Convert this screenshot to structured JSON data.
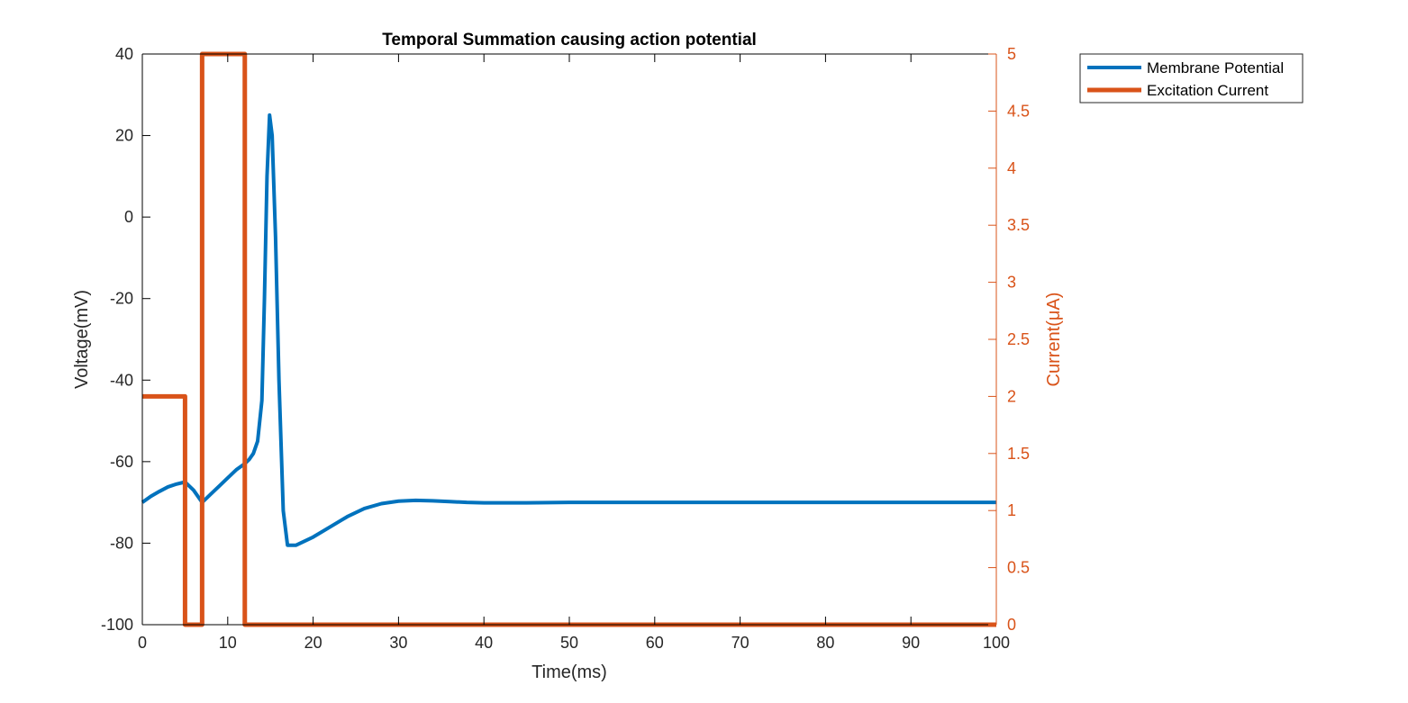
{
  "chart_data": {
    "type": "line",
    "title": "Temporal Summation causing action potential",
    "xlabel": "Time(ms)",
    "ylabel_left": "Voltage(mV)",
    "ylabel_right": "Current(μA)",
    "xlim": [
      0,
      100
    ],
    "ylim_left": [
      -100,
      40
    ],
    "ylim_right": [
      0,
      5
    ],
    "xticks": [
      "0",
      "10",
      "20",
      "30",
      "40",
      "50",
      "60",
      "70",
      "80",
      "90",
      "100"
    ],
    "yticks_left": [
      "-100",
      "-80",
      "-60",
      "-40",
      "-20",
      "0",
      "20",
      "40"
    ],
    "yticks_right": [
      "0",
      "0.5",
      "1",
      "1.5",
      "2",
      "2.5",
      "3",
      "3.5",
      "4",
      "4.5",
      "5"
    ],
    "grid": false,
    "legend_position": "outside-top-right",
    "colors": {
      "left_axis": "#000000",
      "right_axis": "#D95319"
    },
    "series": [
      {
        "name": "Membrane Potential",
        "axis": "left",
        "color": "#0072BD",
        "x": [
          0,
          1,
          2,
          3,
          4,
          5,
          6,
          7,
          8,
          9,
          10,
          11,
          12,
          12.5,
          13,
          13.5,
          14,
          14.3,
          14.6,
          14.9,
          15.2,
          15.6,
          16,
          16.5,
          17,
          18,
          20,
          22,
          24,
          26,
          28,
          30,
          32,
          34,
          36,
          38,
          40,
          45,
          50,
          60,
          70,
          80,
          90,
          100
        ],
        "y": [
          -70,
          -68.5,
          -67.3,
          -66.2,
          -65.5,
          -65,
          -67,
          -70,
          -68,
          -66,
          -64,
          -62,
          -60.5,
          -59.5,
          -58,
          -55,
          -45,
          -20,
          10,
          25,
          20,
          -5,
          -40,
          -72,
          -80.5,
          -80.5,
          -78.5,
          -76,
          -73.5,
          -71.5,
          -70.3,
          -69.7,
          -69.5,
          -69.6,
          -69.8,
          -70,
          -70.1,
          -70.1,
          -70,
          -70,
          -70,
          -70,
          -70,
          -70
        ]
      },
      {
        "name": "Excitation Current",
        "axis": "right",
        "color": "#D95319",
        "x": [
          0,
          5,
          5,
          7,
          7,
          12,
          12,
          100
        ],
        "y": [
          2,
          2,
          0,
          0,
          5,
          5,
          0,
          0
        ]
      }
    ]
  }
}
